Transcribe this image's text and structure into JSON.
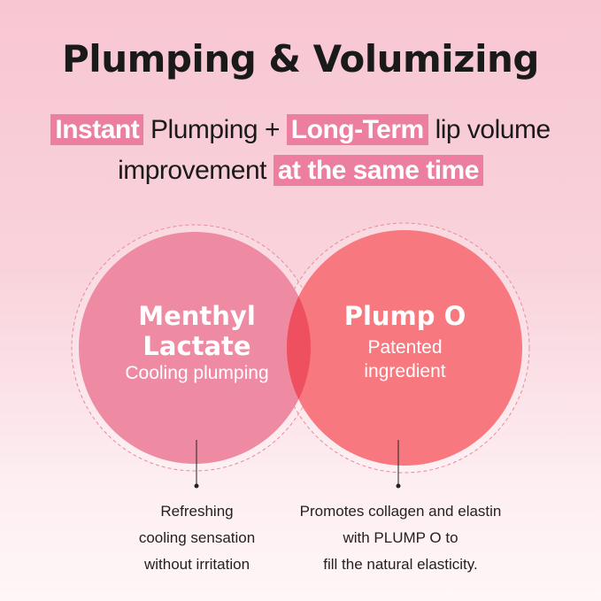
{
  "title": "Plumping & Volumizing",
  "subtitle": {
    "line1": [
      {
        "text": "Instant",
        "highlight": true
      },
      {
        "text": " Plumping + ",
        "highlight": false
      },
      {
        "text": "Long-Term",
        "highlight": true
      },
      {
        "text": " lip volume",
        "highlight": false
      }
    ],
    "line2": [
      {
        "text": "improvement ",
        "highlight": false
      },
      {
        "text": "at the same time",
        "highlight": true
      }
    ]
  },
  "colors": {
    "highlight": "#ec7fa0",
    "left_circle": "#ee8aa2",
    "right_circle": "#f7787e",
    "overlap": "#ef5060"
  },
  "left": {
    "name_line1": "Menthyl",
    "name_line2": "Lactate",
    "desc": "Cooling plumping",
    "note": [
      "Refreshing",
      "cooling sensation",
      "without irritation"
    ]
  },
  "right": {
    "name": "Plump O",
    "desc_line1": "Patented",
    "desc_line2": "ingredient",
    "note": [
      "Promotes collagen and elastin",
      "with PLUMP O to",
      "fill the natural elasticity."
    ]
  }
}
